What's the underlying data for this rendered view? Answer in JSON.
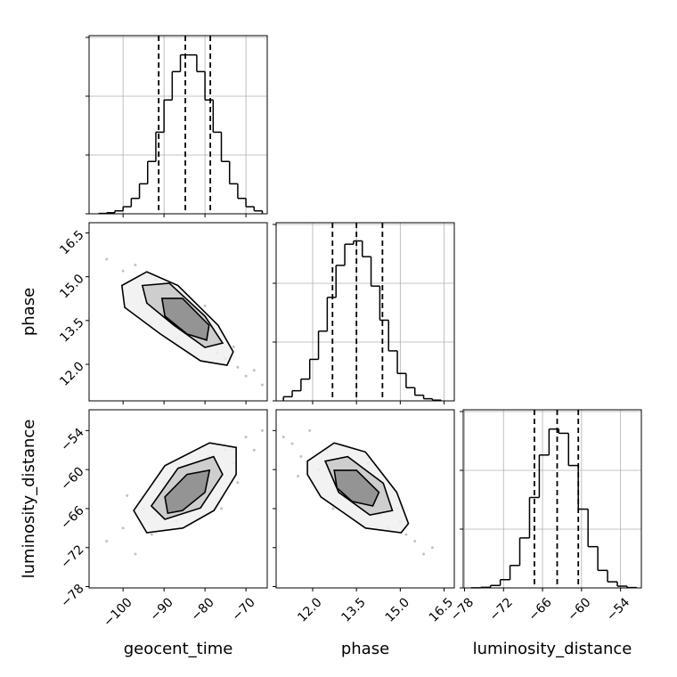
{
  "chart_data": {
    "type": "corner",
    "grid": true,
    "line_color": "#000000",
    "point_color": "#999999",
    "parameters": [
      {
        "name": "geocent_time",
        "lim": [
          -108.3,
          -64.8
        ],
        "ticks": [
          {
            "value": -100,
            "label": "−100"
          },
          {
            "value": -90,
            "label": "−90"
          },
          {
            "value": -80,
            "label": "−80"
          },
          {
            "value": -70,
            "label": "−70"
          }
        ]
      },
      {
        "name": "phase",
        "lim": [
          10.75,
          16.85
        ],
        "ticks": [
          {
            "value": 12,
            "label": "12.0"
          },
          13.5,
          {
            "value": 15,
            "label": "15.0"
          },
          16.5
        ]
      },
      {
        "name": "luminosity_distance",
        "lim": [
          -78.2,
          -50.8
        ],
        "ticks": [
          {
            "value": -78,
            "label": "−78"
          },
          {
            "value": -72,
            "label": "−72"
          },
          {
            "value": -66,
            "label": "−66"
          },
          {
            "value": -60,
            "label": "−60"
          },
          {
            "value": -54,
            "label": "−54"
          }
        ]
      }
    ],
    "histograms": [
      {
        "bins": [
          -106,
          -104,
          -102,
          -100,
          -98,
          -96,
          -94,
          -92,
          -90,
          -88,
          -86,
          -84,
          -82,
          -80,
          -78,
          -76,
          -74,
          -72,
          -70,
          -68,
          -66
        ],
        "counts": [
          3,
          9,
          25,
          60,
          131,
          255,
          445,
          694,
          968,
          1209,
          1351,
          1351,
          1209,
          968,
          694,
          445,
          255,
          131,
          60,
          25
        ],
        "quantiles": [
          -91.3,
          -84.8,
          -78.7
        ],
        "ylim": [
          0,
          1515
        ],
        "yticks": [
          0,
          500,
          1000,
          1500
        ]
      },
      {
        "bins": [
          11.0,
          11.3,
          11.6,
          11.9,
          12.2,
          12.5,
          12.8,
          13.1,
          13.4,
          13.7,
          14.0,
          14.3,
          14.6,
          14.9,
          15.2,
          15.5,
          15.8,
          16.1,
          16.4
        ],
        "counts": [
          35,
          86,
          185,
          353,
          593,
          880,
          1152,
          1332,
          1360,
          1226,
          976,
          686,
          425,
          233,
          112,
          48,
          18,
          6
        ],
        "quantiles": [
          12.68,
          13.5,
          14.39
        ],
        "ylim": [
          0,
          1515
        ],
        "yticks": [
          0,
          500,
          1000,
          1500
        ]
      },
      {
        "bins": [
          -77,
          -75.5,
          -74,
          -72.5,
          -71,
          -69.5,
          -68,
          -66.5,
          -65,
          -63.5,
          -62,
          -60.5,
          -59,
          -57.5,
          -56,
          -54.5,
          -53,
          -51.5
        ],
        "counts": [
          1,
          5,
          21,
          70,
          191,
          425,
          769,
          1130,
          1351,
          1315,
          1041,
          670,
          351,
          149,
          52,
          15,
          3
        ],
        "quantiles": [
          -67.25,
          -63.75,
          -60.5
        ],
        "ylim": [
          0,
          1515
        ],
        "yticks": [
          0,
          500,
          1000,
          1500
        ]
      }
    ],
    "panels": [
      {
        "x": [
          -104,
          -100,
          -97,
          -95,
          -92,
          -90,
          -88,
          -86,
          -84,
          -83,
          -81,
          -79,
          -77,
          -75,
          -73,
          -70,
          -68,
          -66,
          -99,
          -93,
          -87,
          -80,
          -76,
          -72
        ],
        "y": [
          15.6,
          15.2,
          15.4,
          14.4,
          14.9,
          14.2,
          14.6,
          13.6,
          13.9,
          13.0,
          12.8,
          13.3,
          12.4,
          12.2,
          12.6,
          11.6,
          11.8,
          11.3,
          14.1,
          13.9,
          12.9,
          14.0,
          13.1,
          11.9
        ],
        "contours": [
          {
            "x": [
              -100.3,
              -94.2,
              -86.6,
              -76.8,
              -73.1,
              -74.6,
              -81.1,
              -90.9,
              -99.6
            ],
            "y": [
              14.7,
              15.17,
              14.7,
              13.34,
              12.43,
              11.97,
              12.12,
              13.04,
              13.95
            ]
          },
          {
            "x": [
              -95.3,
              -88.7,
              -80.0,
              -75.7,
              -80.0,
              -87.6,
              -94.2
            ],
            "y": [
              14.7,
              14.78,
              13.65,
              12.73,
              12.58,
              13.34,
              14.1
            ]
          },
          {
            "x": [
              -90.5,
              -85.5,
              -79.0,
              -79.6,
              -84.4,
              -89.8
            ],
            "y": [
              14.26,
              14.26,
              13.34,
              12.83,
              13.04,
              13.65
            ]
          }
        ]
      },
      {
        "x": [
          -104,
          -100,
          -97,
          -95,
          -92,
          -90,
          -88,
          -86,
          -84,
          -83,
          -81,
          -79,
          -77,
          -75,
          -73,
          -70,
          -68,
          -66,
          -99,
          -93,
          -87,
          -80,
          -76,
          -72
        ],
        "y": [
          -71,
          -69,
          -73,
          -66,
          -67,
          -62,
          -65,
          -60,
          -64,
          -61,
          -63,
          -58,
          -61,
          -57,
          -59,
          -55,
          -57,
          -54,
          -64,
          -70,
          -68,
          -60,
          -66,
          -62
        ],
        "contours": [
          {
            "x": [
              -97.4,
              -89.8,
              -78.9,
              -72.4,
              -72.4,
              -77.8,
              -85.4,
              -94.2
            ],
            "y": [
              -66.3,
              -59.4,
              -55.9,
              -56.6,
              -60.75,
              -66.3,
              -69.0,
              -69.7
            ]
          },
          {
            "x": [
              -93.1,
              -86.6,
              -77.9,
              -75.7,
              -81.1,
              -89.8
            ],
            "y": [
              -65.6,
              -59.8,
              -58.0,
              -60.75,
              -65.9,
              -67.65
            ]
          },
          {
            "x": [
              -89.8,
              -84.4,
              -78.9,
              -80.0,
              -85.5,
              -89.1
            ],
            "y": [
              -64.2,
              -60.75,
              -60.1,
              -63.5,
              -66.3,
              -66.7
            ]
          }
        ]
      },
      {
        "x": [
          11.0,
          11.3,
          11.6,
          11.9,
          12.2,
          12.5,
          12.8,
          13.1,
          13.4,
          13.7,
          14.0,
          14.3,
          14.6,
          14.9,
          15.2,
          15.5,
          15.8,
          16.1,
          11.5,
          12.0,
          12.7,
          13.9,
          14.5,
          15.0
        ],
        "y": [
          -55,
          -56,
          -58,
          -54,
          -60,
          -57,
          -61,
          -64,
          -62,
          -66,
          -63,
          -67,
          -69,
          -66,
          -70,
          -71,
          -73,
          -72,
          -61,
          -62,
          -66,
          -59,
          -64,
          -68
        ],
        "contours": [
          {
            "x": [
              11.82,
              12.74,
              13.81,
              14.88,
              15.28,
              15.03,
              13.81,
              12.28,
              11.82
            ],
            "y": [
              -58.7,
              -55.9,
              -57.3,
              -63.5,
              -68.3,
              -69.7,
              -69.0,
              -64.2,
              -60.75
            ]
          },
          {
            "x": [
              12.43,
              13.2,
              14.42,
              14.73,
              13.96,
              12.89
            ],
            "y": [
              -58.7,
              -58.0,
              -62.1,
              -66.3,
              -67.0,
              -63.5
            ]
          },
          {
            "x": [
              12.74,
              13.5,
              14.27,
              14.06,
              13.35,
              12.83
            ],
            "y": [
              -60.1,
              -60.1,
              -63.5,
              -65.6,
              -64.9,
              -62.8
            ]
          }
        ]
      }
    ]
  }
}
